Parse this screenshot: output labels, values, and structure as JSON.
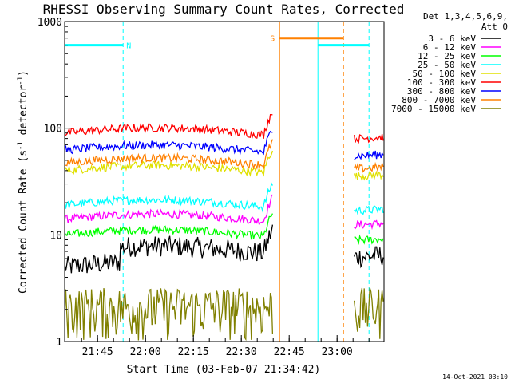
{
  "chart_data": {
    "type": "line",
    "title": "RHESSI Observing Summary Count Rates, Corrected",
    "xlabel": "Start Time (03-Feb-07 21:34:42)",
    "ylabel": "Corrected Count Rate (s",
    "ylabel_sup1": "-1",
    "ylabel_mid": " detector",
    "ylabel_sup2": "-1",
    "ylabel_end": ")",
    "x_ticks": [
      "21:45",
      "22:00",
      "22:15",
      "22:30",
      "22:45",
      "23:00"
    ],
    "y_ticks": [
      "1",
      "10",
      "100",
      "1000"
    ],
    "y_scale": "log",
    "ylim": [
      1,
      1000
    ],
    "xlim_minutes_after_2134": [
      0,
      105
    ],
    "legend_header": [
      "Det 1,3,4,5,6,9,",
      "Att 0"
    ],
    "timestamp": "14-Oct-2021 03:10",
    "bars": [
      {
        "label": "N",
        "color": "#00ffff",
        "start": "21:34",
        "end": "21:53"
      },
      {
        "label": "S",
        "color": "#ff8000",
        "start": "22:42",
        "end": "23:02"
      },
      {
        "label": "",
        "color": "#00ffff",
        "start": "22:54",
        "end": "23:10"
      }
    ],
    "vlines": [
      {
        "time": "21:53",
        "color": "#00ffff",
        "style": "dashed"
      },
      {
        "time": "22:42",
        "color": "#ff8000",
        "style": "solid"
      },
      {
        "time": "22:54",
        "color": "#00ffff",
        "style": "solid"
      },
      {
        "time": "23:02",
        "color": "#ff8000",
        "style": "dashed"
      },
      {
        "time": "23:10",
        "color": "#00ffff",
        "style": "dashed"
      }
    ],
    "series": [
      {
        "name": "3 - 6 keV",
        "color": "#000000",
        "level": 5
      },
      {
        "name": "6 - 12 keV",
        "color": "#ff00ff",
        "level": 14
      },
      {
        "name": "12 - 25 keV",
        "color": "#00ff00",
        "level": 10
      },
      {
        "name": "25 - 50 keV",
        "color": "#00ffff",
        "level": 19
      },
      {
        "name": "50 - 100 keV",
        "color": "#e0e000",
        "level": 40
      },
      {
        "name": "100 - 300 keV",
        "color": "#ff0000",
        "level": 90
      },
      {
        "name": "300 - 800 keV",
        "color": "#0000ff",
        "level": 62
      },
      {
        "name": "800 - 7000 keV",
        "color": "#ff8000",
        "level": 47
      },
      {
        "name": "7000 - 15000 keV",
        "color": "#808000",
        "level": 2
      }
    ]
  }
}
